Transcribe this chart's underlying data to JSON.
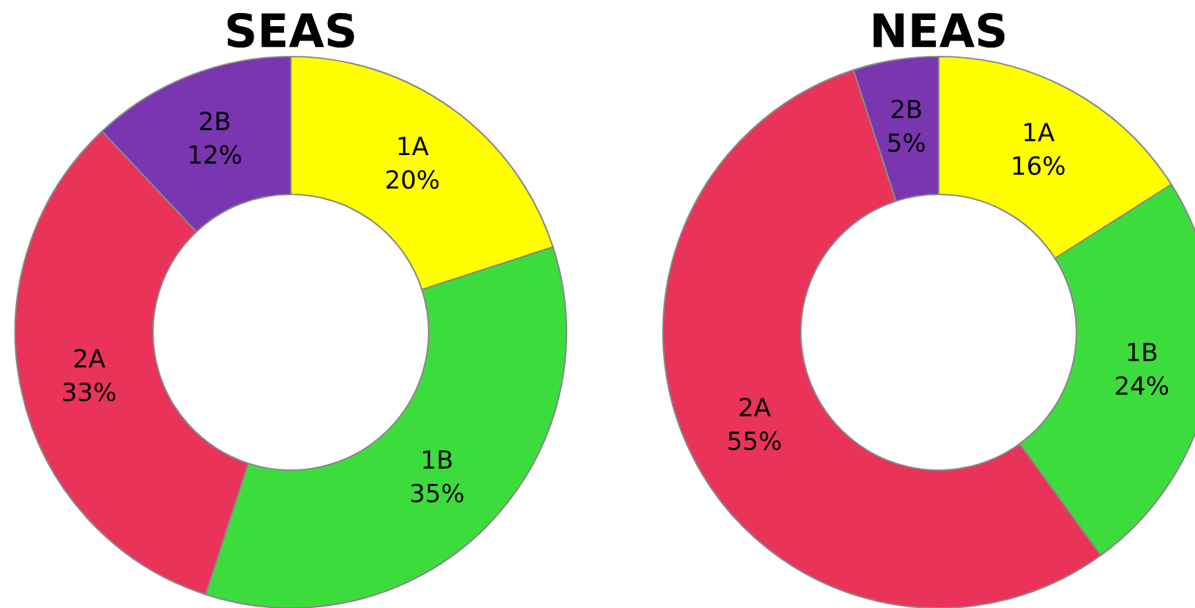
{
  "chart_data": [
    {
      "type": "donut",
      "title": "SEAS",
      "categories": [
        "1A",
        "1B",
        "2A",
        "2B"
      ],
      "values": [
        20,
        35,
        33,
        12
      ],
      "value_labels": [
        "20%",
        "35%",
        "33%",
        "12%"
      ],
      "colors": [
        "#ffff00",
        "#3ddc3d",
        "#ea3358",
        "#7a35b0"
      ],
      "legend": false
    },
    {
      "type": "donut",
      "title": "NEAS",
      "categories": [
        "1A",
        "1B",
        "2A",
        "2B"
      ],
      "values": [
        16,
        24,
        55,
        5
      ],
      "value_labels": [
        "16%",
        "24%",
        "55%",
        "5%"
      ],
      "colors": [
        "#ffff00",
        "#3ddc3d",
        "#ea3358",
        "#7a35b0"
      ],
      "legend": false
    }
  ]
}
